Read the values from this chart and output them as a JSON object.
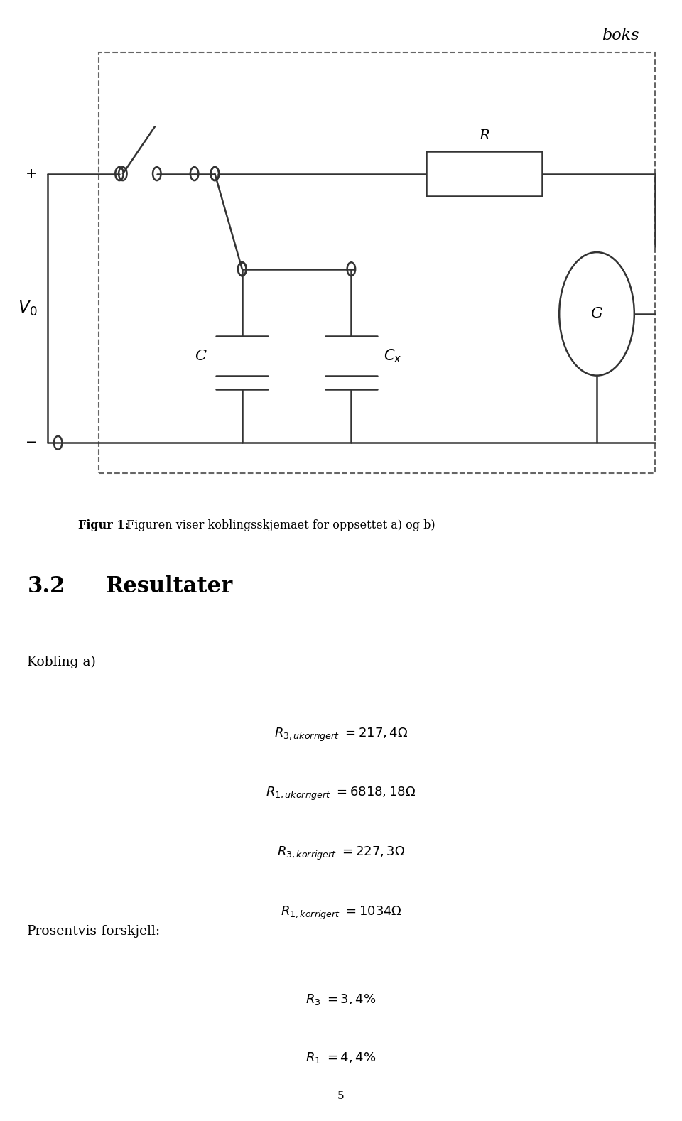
{
  "figsize": [
    9.6,
    15.78
  ],
  "dpi": 100,
  "bg_color": "#ffffff",
  "figure_caption_bold": "Figur 1:",
  "figure_caption_normal": " Figuren viser koblingsskjemaet for oppsettet a) og b)",
  "section_number": "3.2",
  "section_title": "Resultater",
  "subsection": "Kobling a)",
  "equations": [
    {
      "lhs": "R_{3,ukorrigert}",
      "rhs": "= 217, 4\\Omega"
    },
    {
      "lhs": "R_{1,ukorrigert}",
      "rhs": "= 6818, 18\\Omega"
    },
    {
      "lhs": "R_{3,korrigert}",
      "rhs": "= 227, 3\\Omega"
    },
    {
      "lhs": "R_{1,korrigert}",
      "rhs": "= 1034\\Omega"
    }
  ],
  "prosentvis_label": "Prosentvis-forskjell:",
  "percent_equations": [
    {
      "lhs": "R_3",
      "rhs": "= 3, 4\\%"
    },
    {
      "lhs": "R_1",
      "rhs": "= 4, 4\\%"
    }
  ],
  "page_number": "5",
  "boks_label": "boks",
  "C_label": "C",
  "Cx_label": "C_x",
  "R_label": "R",
  "G_label": "G",
  "lw": 1.8,
  "color": "#333333"
}
